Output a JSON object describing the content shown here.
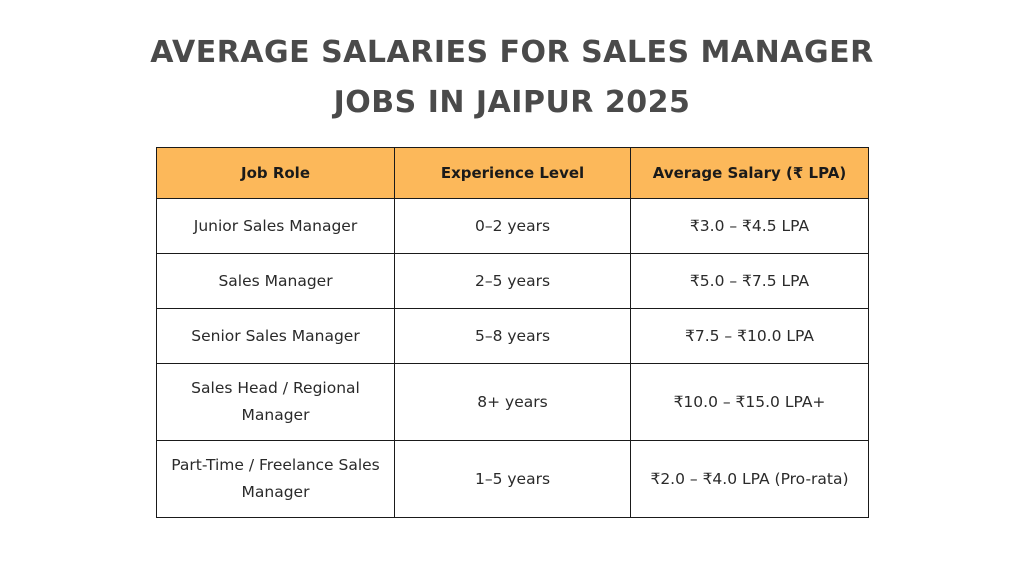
{
  "title": {
    "line1": "AVERAGE SALARIES FOR SALES MANAGER",
    "line2": "JOBS IN JAIPUR 2025"
  },
  "table": {
    "headers": [
      "Job Role",
      "Experience Level",
      "Average Salary (₹ LPA)"
    ],
    "rows": [
      {
        "role": "Junior Sales Manager",
        "experience": "0–2 years",
        "salary": "₹3.0 – ₹4.5 LPA"
      },
      {
        "role": "Sales Manager",
        "experience": "2–5 years",
        "salary": "₹5.0 – ₹7.5 LPA"
      },
      {
        "role": "Senior Sales Manager",
        "experience": "5–8 years",
        "salary": "₹7.5 – ₹10.0 LPA"
      },
      {
        "role": "Sales Head / Regional Manager",
        "experience": "8+ years",
        "salary": "₹10.0 – ₹15.0 LPA+"
      },
      {
        "role": "Part-Time / Freelance Sales Manager",
        "experience": "1–5 years",
        "salary": "₹2.0 – ₹4.0 LPA (Pro-rata)"
      }
    ]
  },
  "colors": {
    "header_bg": "#fcb85a",
    "title_text": "#4a4a4a",
    "border": "#1a1a1a"
  }
}
